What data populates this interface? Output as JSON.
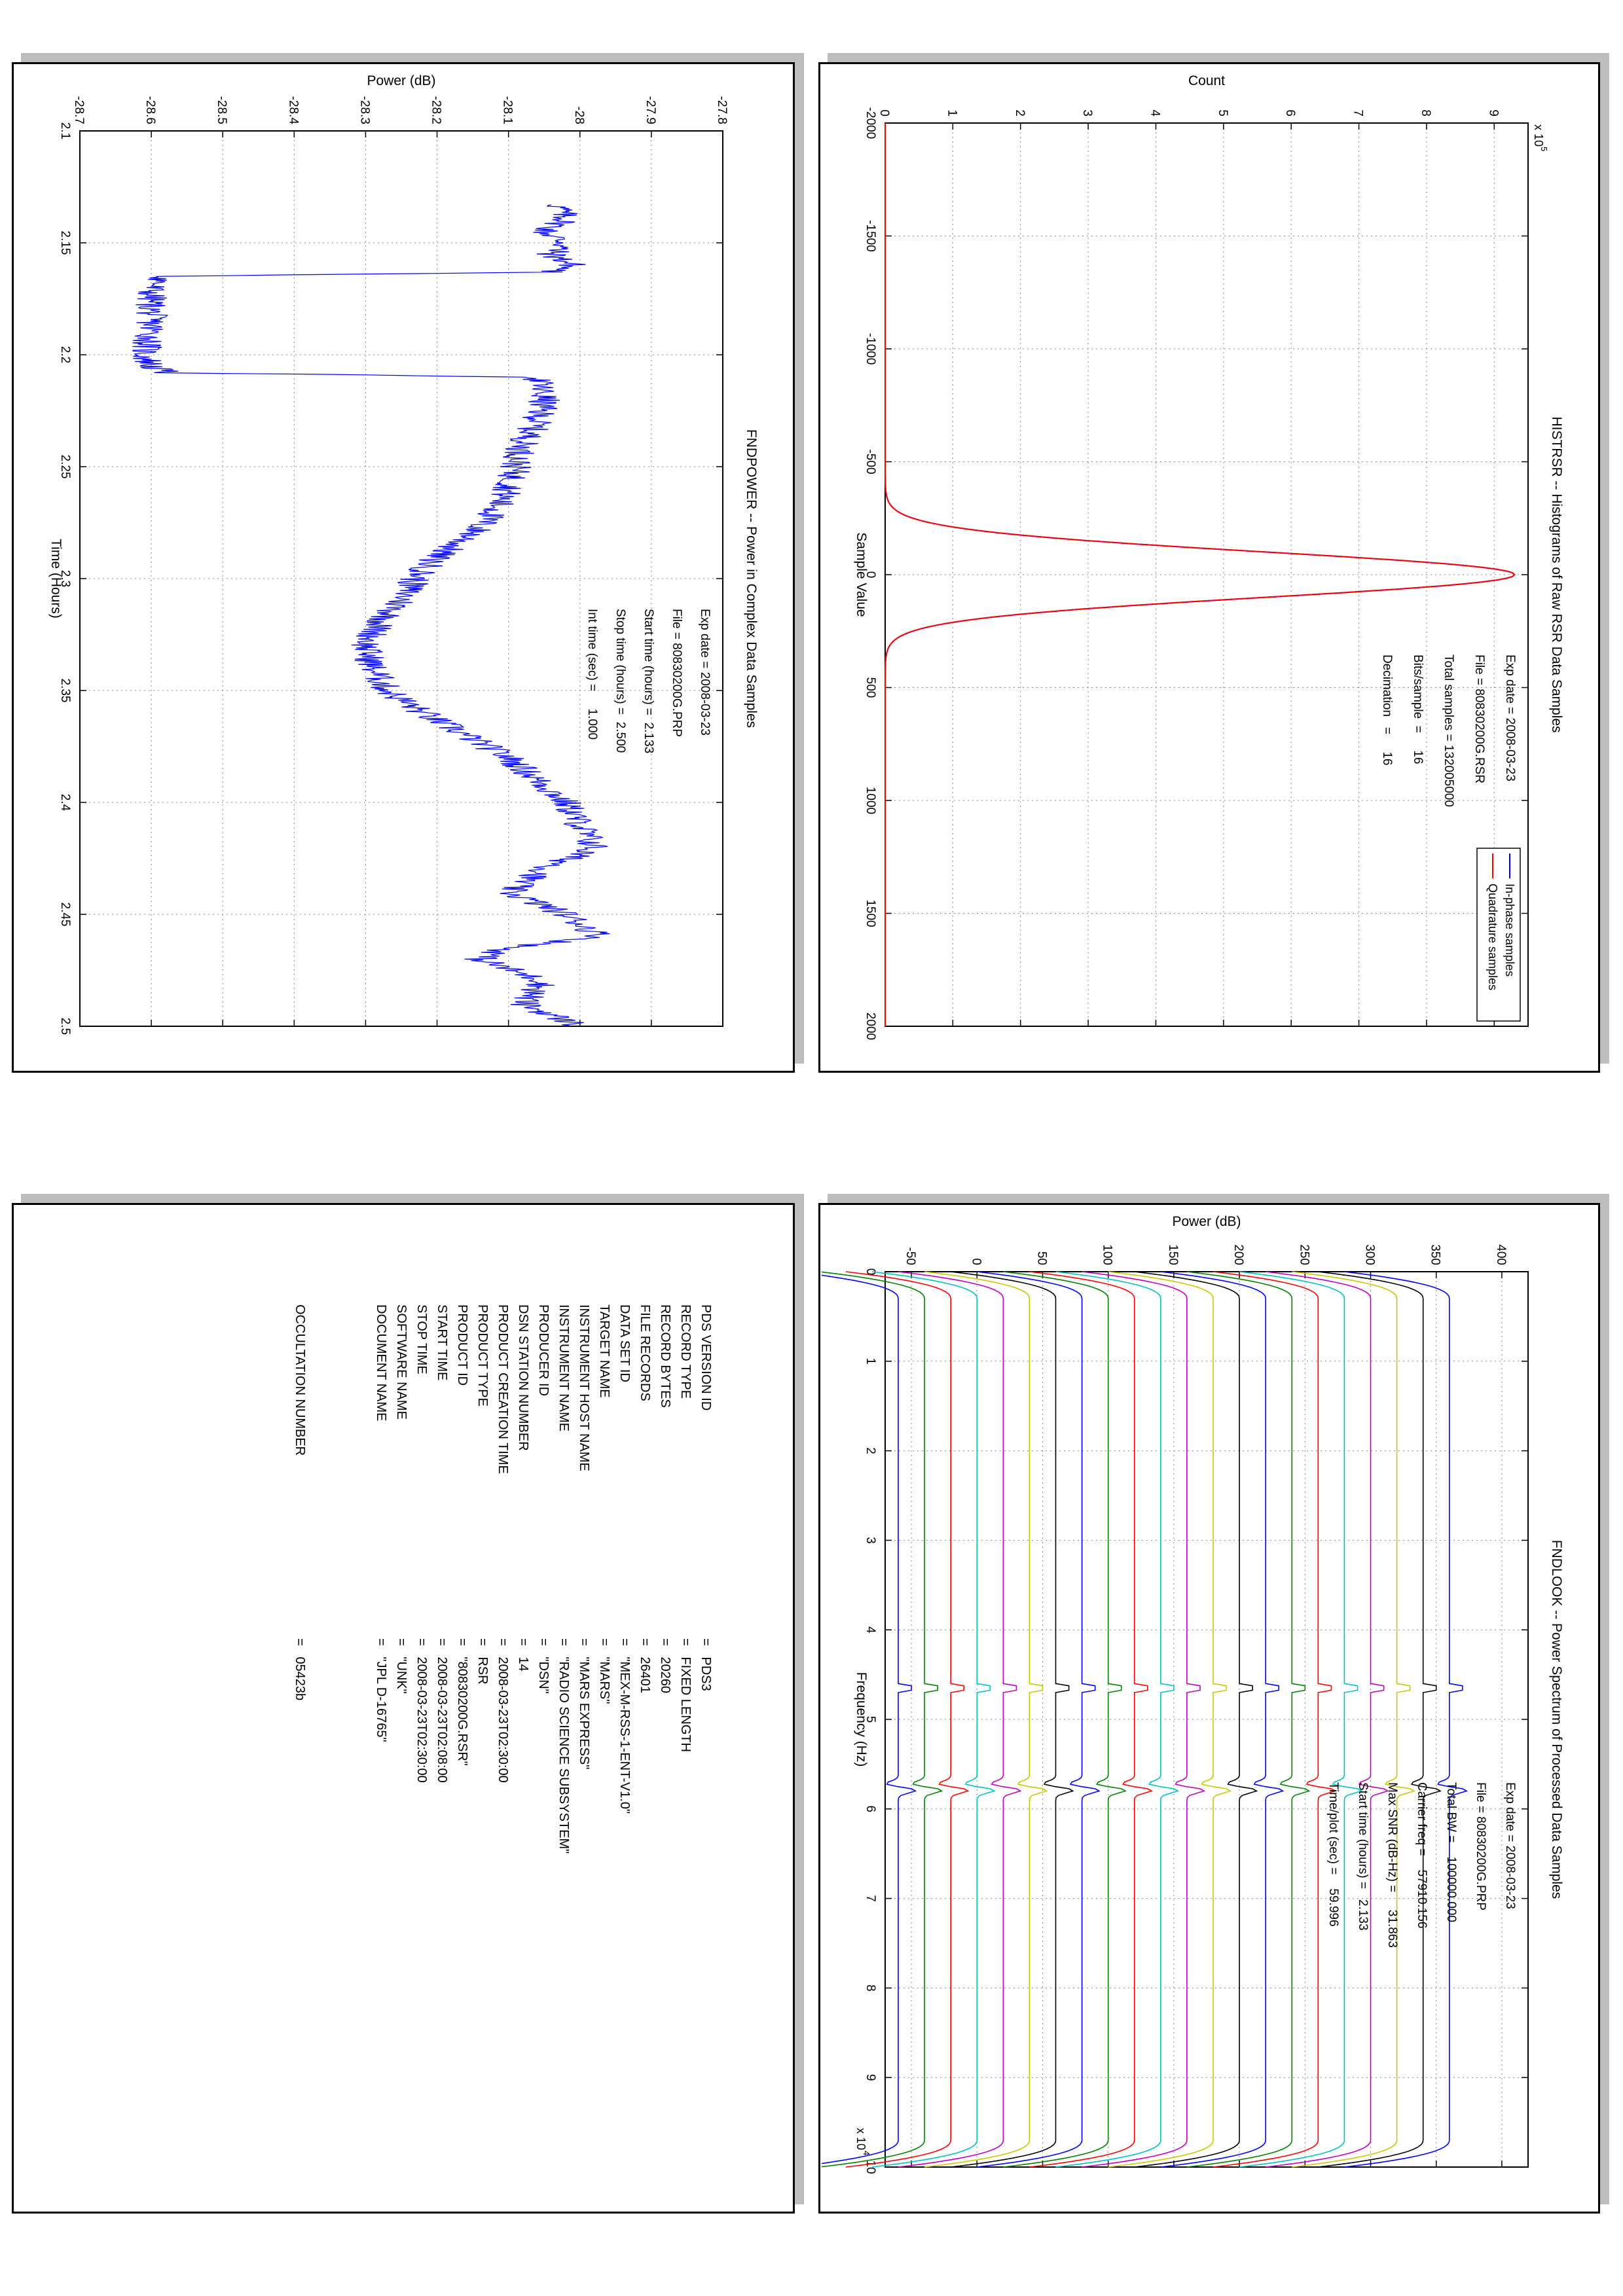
{
  "charts": {
    "histrsr": {
      "title": "HISTRSR -- Histograms of Raw RSR Data Samples",
      "xlabel": "Sample Value",
      "ylabel": "Count",
      "y_exponent": "x 10",
      "y_exponent_power": "5",
      "xticks": [
        "-2000",
        "-1500",
        "-1000",
        "-500",
        "0",
        "500",
        "1000",
        "1500",
        "2000"
      ],
      "yticks": [
        "0",
        "1",
        "2",
        "3",
        "4",
        "5",
        "6",
        "7",
        "8",
        "9"
      ],
      "legend": [
        "In-phase samples",
        "Quadrature samples"
      ],
      "info": [
        "Exp date = 2008-03-23",
        "File = 80830200G.RSR",
        "Total samples = 132005000",
        "Bits/sample  =     16",
        "Decimation   =     16"
      ]
    },
    "fndpower": {
      "title": "FNDPOWER -- Power in Complex Data Samples",
      "xlabel": "Time (Hours)",
      "ylabel": "Power (dB)",
      "xticks": [
        "2.1",
        "2.15",
        "2.2",
        "2.25",
        "2.3",
        "2.35",
        "2.4",
        "2.45",
        "2.5"
      ],
      "yticks": [
        "-28.7",
        "-28.6",
        "-28.5",
        "-28.4",
        "-28.3",
        "-28.2",
        "-28.1",
        "-28",
        "-27.9",
        "-27.8"
      ],
      "info": [
        "Exp date = 2008-03-23",
        "File = 80830200G.PRP",
        "Start time (hours) =  2.133",
        "Stop time (hours) =  2.500",
        "Int time (sec) =     1.000"
      ]
    },
    "fndlook": {
      "title": "FNDLOOK -- Power Spectrum of Processed Data Samples",
      "xlabel": "Frequency (Hz)",
      "ylabel": "Power (dB)",
      "x_exponent": "x 10",
      "x_exponent_power": "4",
      "xticks": [
        "0",
        "1",
        "2",
        "3",
        "4",
        "5",
        "6",
        "7",
        "8",
        "9",
        "10"
      ],
      "yticks": [
        "-50",
        "0",
        "50",
        "100",
        "150",
        "200",
        "250",
        "300",
        "350",
        "400"
      ],
      "info": [
        "Exp date = 2008-03-23",
        "File = 80830200G.PRP",
        "Total BW =    100000.000",
        "Carrier freq =    57910.156",
        "Max SNR (dB-Hz) =     31.863",
        "Start time (hours) =   2.133",
        "Time/plot (sec) =    59.996"
      ]
    }
  },
  "chart_data": [
    {
      "type": "line",
      "title": "HISTRSR -- Histograms of Raw RSR Data Samples",
      "xlabel": "Sample Value",
      "ylabel": "Count",
      "xlim": [
        -2000,
        2000
      ],
      "ylim": [
        0,
        950000
      ],
      "grid": true,
      "legend_position": "top-left",
      "series": [
        {
          "name": "In-phase samples",
          "color": "#0000ff",
          "peak_x": 0,
          "peak_y": 930000,
          "sigma": 100
        },
        {
          "name": "Quadrature samples",
          "color": "#ff0000",
          "peak_x": 0,
          "peak_y": 930000,
          "sigma": 100
        }
      ]
    },
    {
      "type": "line",
      "title": "FNDPOWER -- Power in Complex Data Samples",
      "xlabel": "Time (Hours)",
      "ylabel": "Power (dB)",
      "xlim": [
        2.1,
        2.5
      ],
      "ylim": [
        -28.7,
        -27.8
      ],
      "grid": true,
      "series": [
        {
          "color": "#0000ff",
          "x": [
            2.133,
            2.14,
            2.145,
            2.15,
            2.155,
            2.16,
            2.163,
            2.165,
            2.17,
            2.18,
            2.19,
            2.2,
            2.205,
            2.208,
            2.21,
            2.22,
            2.23,
            2.24,
            2.25,
            2.26,
            2.27,
            2.28,
            2.29,
            2.3,
            2.31,
            2.32,
            2.33,
            2.34,
            2.35,
            2.36,
            2.37,
            2.38,
            2.39,
            2.4,
            2.41,
            2.42,
            2.43,
            2.44,
            2.45,
            2.46,
            2.465,
            2.47,
            2.48,
            2.49,
            2.5
          ],
          "y": [
            -28.03,
            -28.02,
            -28.05,
            -28.02,
            -28.04,
            -28.01,
            -28.04,
            -28.58,
            -28.6,
            -28.6,
            -28.6,
            -28.61,
            -28.6,
            -28.58,
            -28.06,
            -28.05,
            -28.06,
            -28.08,
            -28.09,
            -28.1,
            -28.12,
            -28.15,
            -28.2,
            -28.23,
            -28.25,
            -28.28,
            -28.3,
            -28.29,
            -28.27,
            -28.22,
            -28.16,
            -28.1,
            -28.06,
            -28.02,
            -28.0,
            -27.98,
            -28.05,
            -28.1,
            -28.02,
            -27.97,
            -28.1,
            -28.14,
            -28.05,
            -28.08,
            -28.0
          ]
        }
      ]
    },
    {
      "type": "line",
      "title": "FNDLOOK -- Power Spectrum of Processed Data Samples",
      "xlabel": "Frequency (Hz)",
      "ylabel": "Power (dB)",
      "xlim": [
        0,
        100000
      ],
      "ylim": [
        -70,
        420
      ],
      "grid": true,
      "series": [
        {
          "color": "#0000ff",
          "level": 360
        },
        {
          "color": "#000000",
          "level": 340
        },
        {
          "color": "#c8c800",
          "level": 320
        },
        {
          "color": "#c000c0",
          "level": 300
        },
        {
          "color": "#00c0c0",
          "level": 280
        },
        {
          "color": "#ff0000",
          "level": 260
        },
        {
          "color": "#008000",
          "level": 240
        },
        {
          "color": "#0000ff",
          "level": 220
        },
        {
          "color": "#000000",
          "level": 200
        },
        {
          "color": "#c8c800",
          "level": 180
        },
        {
          "color": "#c000c0",
          "level": 160
        },
        {
          "color": "#00c0c0",
          "level": 140
        },
        {
          "color": "#ff0000",
          "level": 120
        },
        {
          "color": "#008000",
          "level": 100
        },
        {
          "color": "#0000ff",
          "level": 80
        },
        {
          "color": "#000000",
          "level": 60
        },
        {
          "color": "#c8c800",
          "level": 40
        },
        {
          "color": "#c000c0",
          "level": 20
        },
        {
          "color": "#00c0c0",
          "level": 0
        },
        {
          "color": "#ff0000",
          "level": -20
        },
        {
          "color": "#008000",
          "level": -40
        },
        {
          "color": "#0000ff",
          "level": -60
        }
      ]
    }
  ],
  "label_table": {
    "keys": [
      "PDS VERSION ID",
      "RECORD TYPE",
      "RECORD BYTES",
      "FILE RECORDS",
      "DATA SET ID",
      "TARGET NAME",
      "INSTRUMENT HOST NAME",
      "INSTRUMENT NAME",
      "PRODUCER ID",
      "DSN STATION NUMBER",
      "PRODUCT CREATION TIME",
      "PRODUCT TYPE",
      "PRODUCT ID",
      "START TIME",
      "STOP TIME",
      "SOFTWARE NAME",
      "DOCUMENT NAME"
    ],
    "values": [
      "=   PDS3",
      "=   FIXED LENGTH",
      "=   20260",
      "=   26401",
      "=   \"MEX-M-RSS-1-ENT-V1.0\"",
      "=   \"MARS\"",
      "=   \"MARS EXPRESS\"",
      "=   \"RADIO SCIENCE SUBSYSTEM\"",
      "=   \"DSN\"",
      "=   14",
      "=   2008-03-23T02:30:00",
      "=   RSR",
      "=   \"80830200G.RSR\"",
      "=   2008-03-23T02:08:00",
      "=   2008-03-23T02:30:00",
      "=   \"UNK\"",
      "=   \"JPL D-16765\""
    ],
    "occ_key": "OCCULTATION NUMBER",
    "occ_value": "=   05423b"
  }
}
